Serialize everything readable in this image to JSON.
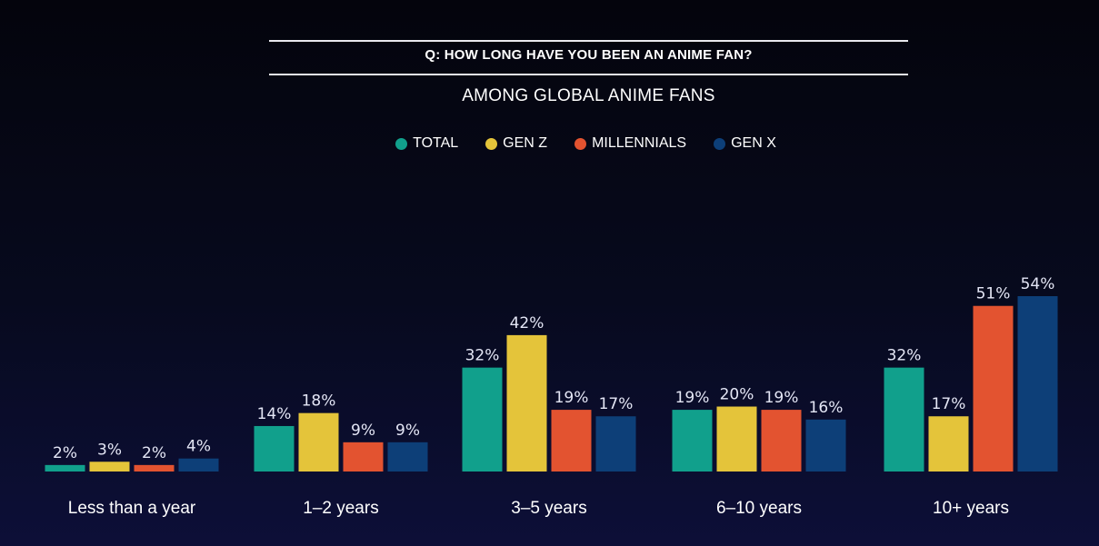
{
  "header": {
    "question": "Q: HOW LONG HAVE YOU BEEN AN ANIME FAN?",
    "subtitle": "AMONG GLOBAL ANIME FANS"
  },
  "colors": {
    "TOTAL": "#11a08c",
    "GEN Z": "#e4c43a",
    "MILLENNIALS": "#e35330",
    "GEN X": "#0d3f78"
  },
  "chart_data": {
    "type": "bar",
    "title": "Q: HOW LONG HAVE YOU BEEN AN ANIME FAN?",
    "subtitle": "AMONG GLOBAL ANIME FANS",
    "categories": [
      "Less than a year",
      "1–2 years",
      "3–5 years",
      "6–10 years",
      "10+ years"
    ],
    "series": [
      {
        "name": "TOTAL",
        "values": [
          2,
          14,
          32,
          19,
          32
        ]
      },
      {
        "name": "GEN Z",
        "values": [
          3,
          18,
          42,
          20,
          17
        ]
      },
      {
        "name": "MILLENNIALS",
        "values": [
          2,
          9,
          19,
          19,
          51
        ]
      },
      {
        "name": "GEN X",
        "values": [
          4,
          9,
          17,
          16,
          54
        ]
      }
    ],
    "value_suffix": "%",
    "ylim": [
      0,
      54
    ],
    "grid": false,
    "legend_position": "top-center"
  }
}
